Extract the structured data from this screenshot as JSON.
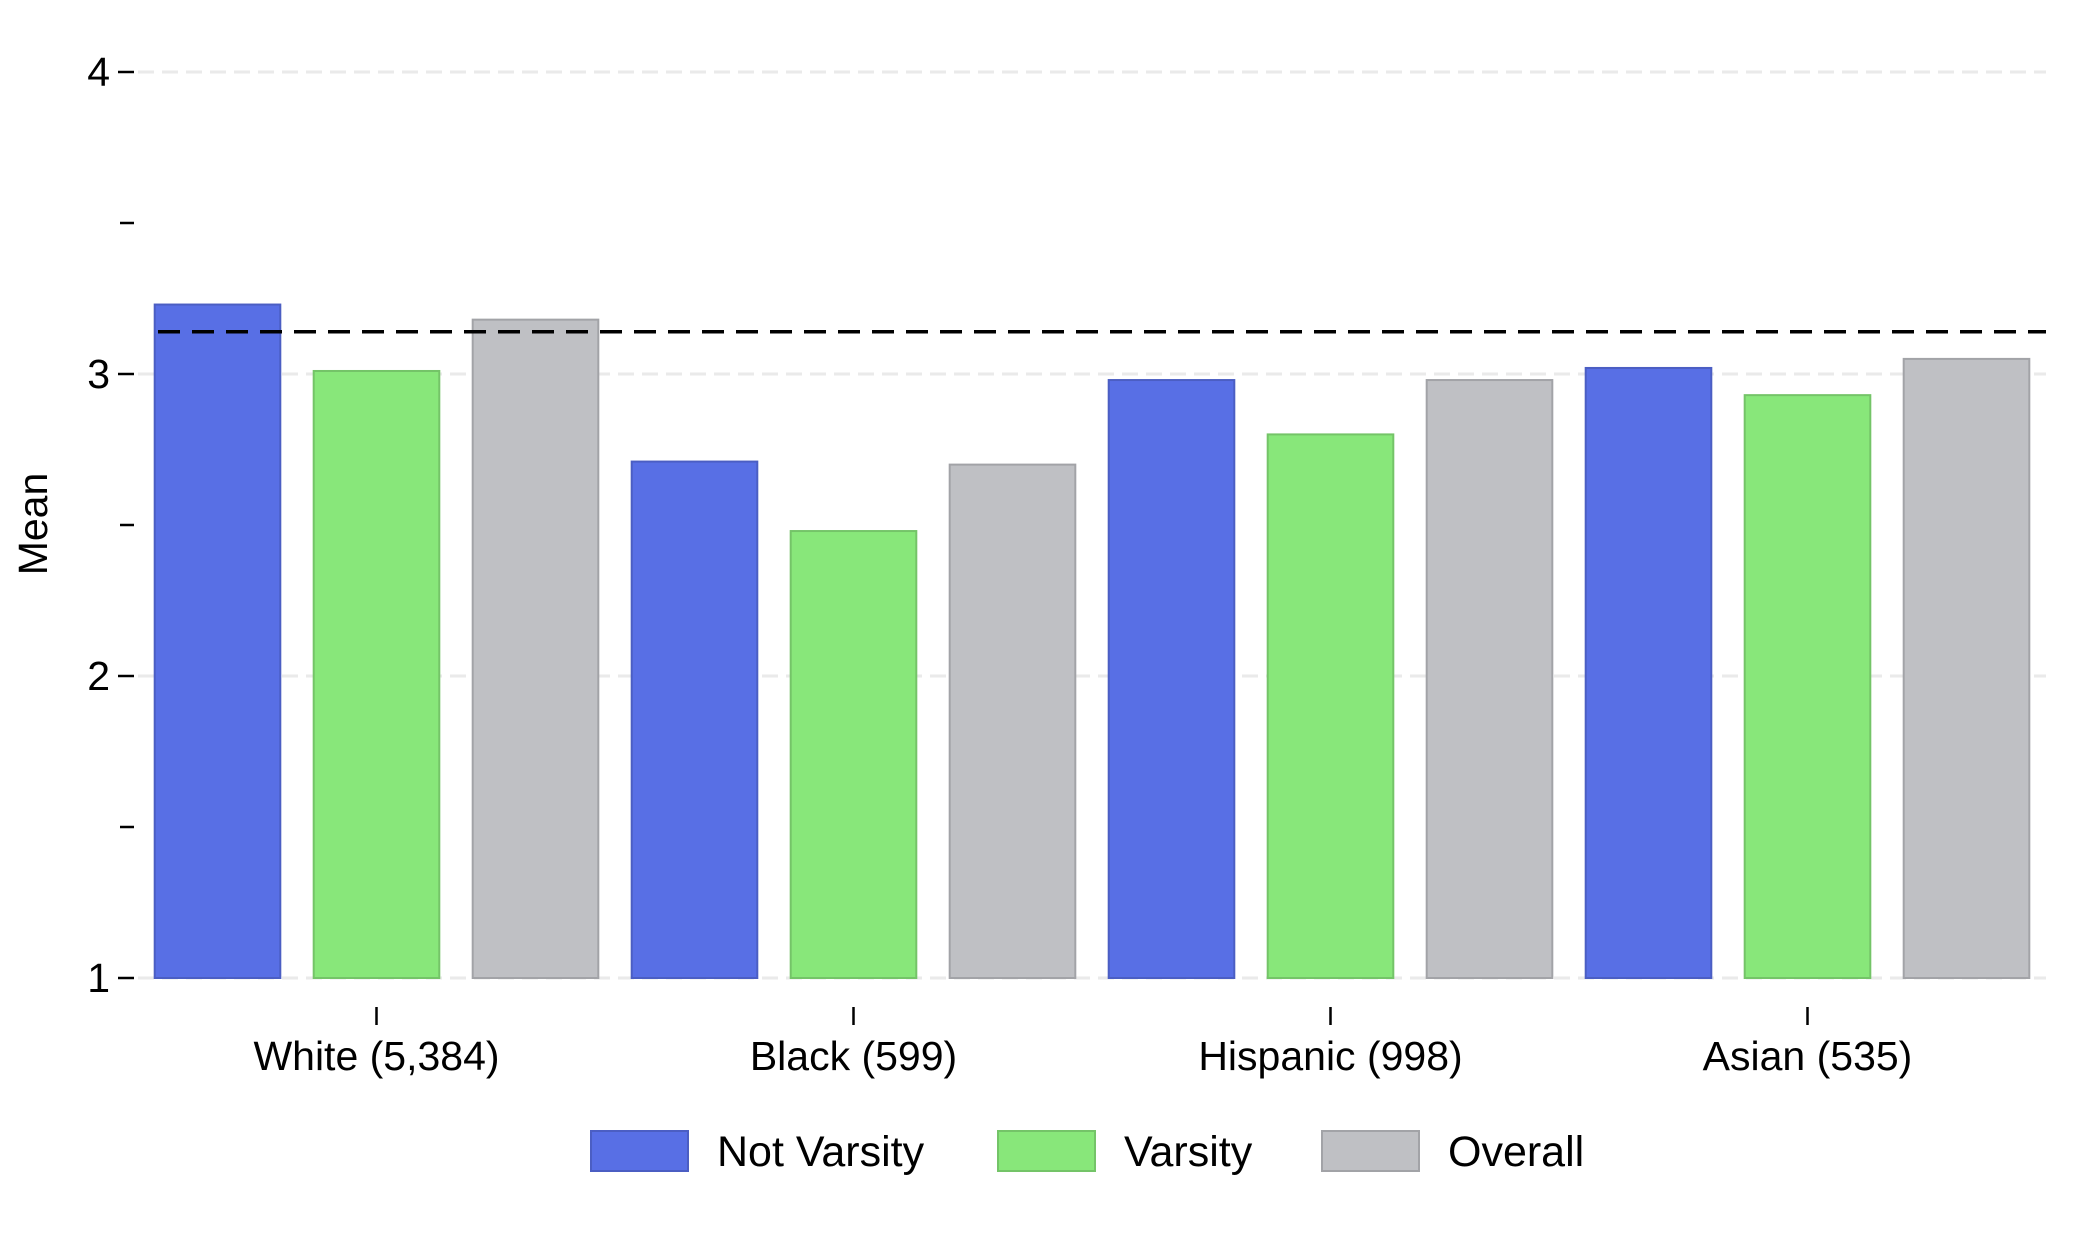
{
  "chart_data": {
    "type": "bar",
    "title": "",
    "xlabel": "",
    "ylabel": "Mean",
    "categories": [
      "White (5,384)",
      "Black (599)",
      "Hispanic (998)",
      "Asian (535)"
    ],
    "series": [
      {
        "name": "Not Varsity",
        "color": "#586FE5",
        "values": [
          3.23,
          2.71,
          2.98,
          3.02
        ]
      },
      {
        "name": "Varsity",
        "color": "#88E77A",
        "values": [
          3.01,
          2.48,
          2.8,
          2.93
        ]
      },
      {
        "name": "Overall",
        "color": "#BFC0C4",
        "values": [
          3.18,
          2.7,
          2.98,
          3.05
        ]
      }
    ],
    "reference_line": {
      "value": 3.14,
      "style": "dashed"
    },
    "ylim": [
      1,
      4
    ],
    "yticks_major": [
      1,
      2,
      3,
      4
    ],
    "yticks_minor": [
      1.5,
      2.5,
      3.5
    ],
    "grid": true,
    "legend_position": "bottom"
  }
}
